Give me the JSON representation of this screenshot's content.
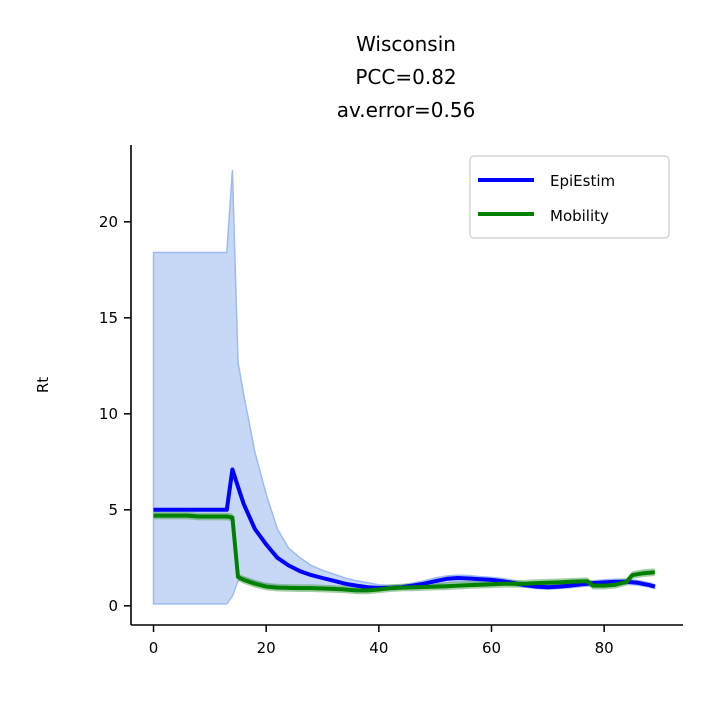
{
  "chart_data": {
    "type": "line",
    "title": [
      "Wisconsin",
      "PCC=0.82",
      "av.error=0.56"
    ],
    "xlabel": "",
    "ylabel": "Rt",
    "xlim": [
      -4,
      94
    ],
    "ylim": [
      -1,
      24
    ],
    "xticks": [
      0,
      20,
      40,
      60,
      80
    ],
    "yticks": [
      0,
      5,
      10,
      15,
      20
    ],
    "grid": false,
    "legend_position": "top-right",
    "colors": {
      "epiestim": "#0000ff",
      "epiestim_band_fill": "#c4d5f5",
      "epiestim_band_edge": "#9ebbef",
      "mobility": "#008000",
      "mobility_band": "#5aa65a"
    },
    "series": [
      {
        "name": "EpiEstim",
        "color": "#0000ff",
        "x": [
          0,
          2,
          4,
          6,
          8,
          10,
          12,
          13,
          14,
          15,
          16,
          18,
          20,
          22,
          24,
          26,
          28,
          30,
          32,
          34,
          36,
          38,
          40,
          42,
          44,
          46,
          48,
          50,
          52,
          54,
          56,
          58,
          60,
          62,
          64,
          66,
          68,
          70,
          72,
          74,
          76,
          78,
          80,
          82,
          84,
          86,
          88,
          89
        ],
        "y": [
          5.0,
          5.0,
          5.0,
          5.0,
          5.0,
          5.0,
          5.0,
          5.0,
          7.1,
          6.2,
          5.3,
          4.0,
          3.2,
          2.5,
          2.1,
          1.8,
          1.6,
          1.45,
          1.3,
          1.15,
          1.05,
          0.97,
          0.93,
          0.93,
          0.97,
          1.05,
          1.15,
          1.28,
          1.4,
          1.45,
          1.42,
          1.38,
          1.35,
          1.28,
          1.18,
          1.08,
          1.0,
          0.97,
          1.0,
          1.05,
          1.12,
          1.18,
          1.22,
          1.25,
          1.25,
          1.2,
          1.08,
          1.0
        ],
        "lower": [
          0.1,
          0.1,
          0.1,
          0.1,
          0.1,
          0.1,
          0.1,
          0.1,
          0.5,
          1.3,
          1.5,
          1.3,
          1.15,
          1.05,
          1.0,
          1.0,
          0.95,
          0.9,
          0.85,
          0.8,
          0.78,
          0.78,
          0.8,
          0.83,
          0.87,
          0.92,
          1.0,
          1.1,
          1.2,
          1.25,
          1.25,
          1.2,
          1.18,
          1.12,
          1.05,
          0.97,
          0.9,
          0.87,
          0.9,
          0.95,
          1.0,
          1.05,
          1.1,
          1.12,
          1.12,
          1.08,
          0.98,
          0.9
        ],
        "upper": [
          18.4,
          18.4,
          18.4,
          18.4,
          18.4,
          18.4,
          18.4,
          18.4,
          22.7,
          12.7,
          11.0,
          8.0,
          5.8,
          4.0,
          3.0,
          2.5,
          2.1,
          1.85,
          1.65,
          1.45,
          1.3,
          1.2,
          1.1,
          1.05,
          1.08,
          1.18,
          1.3,
          1.45,
          1.55,
          1.6,
          1.58,
          1.52,
          1.48,
          1.42,
          1.32,
          1.2,
          1.12,
          1.08,
          1.1,
          1.15,
          1.22,
          1.3,
          1.35,
          1.38,
          1.38,
          1.32,
          1.2,
          1.1
        ]
      },
      {
        "name": "Mobility",
        "color": "#008000",
        "x": [
          0,
          2,
          4,
          6,
          8,
          10,
          12,
          13,
          14,
          15,
          16,
          18,
          20,
          22,
          24,
          26,
          28,
          30,
          32,
          34,
          36,
          38,
          40,
          42,
          44,
          46,
          48,
          50,
          52,
          54,
          56,
          58,
          60,
          62,
          64,
          66,
          68,
          70,
          72,
          74,
          76,
          77,
          78,
          80,
          82,
          84,
          85,
          87,
          89
        ],
        "y": [
          4.7,
          4.7,
          4.7,
          4.7,
          4.65,
          4.65,
          4.65,
          4.65,
          4.6,
          1.5,
          1.35,
          1.15,
          1.0,
          0.95,
          0.93,
          0.92,
          0.92,
          0.9,
          0.88,
          0.85,
          0.8,
          0.8,
          0.85,
          0.92,
          0.95,
          0.96,
          0.98,
          1.0,
          1.02,
          1.05,
          1.08,
          1.1,
          1.12,
          1.15,
          1.15,
          1.15,
          1.18,
          1.2,
          1.22,
          1.25,
          1.27,
          1.28,
          1.05,
          1.05,
          1.1,
          1.25,
          1.6,
          1.7,
          1.75
        ],
        "band": 0.2
      }
    ]
  }
}
